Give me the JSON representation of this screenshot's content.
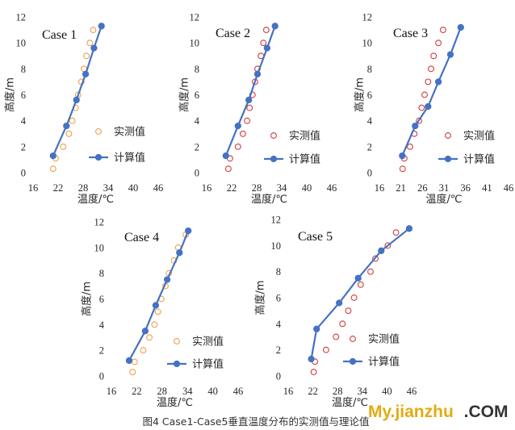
{
  "figure": {
    "caption": "图4 Case1-Case5垂直温度分布的实测值与理论值",
    "watermark": {
      "main": "My.jianzhu",
      "suffix": ".COM",
      "main_color": "#e3ab12",
      "suffix_color": "#333333"
    }
  },
  "chart_data": [
    {
      "type": "scatter",
      "title": "Case 1",
      "xlabel": "温度/℃",
      "ylabel": "高度/m",
      "xlim": [
        16,
        46
      ],
      "ylim": [
        0,
        12
      ],
      "xticks": [
        16,
        22,
        28,
        34,
        40,
        46
      ],
      "yticks": [
        0,
        2,
        4,
        6,
        8,
        10,
        12
      ],
      "grid": false,
      "legend": "bottom-right",
      "series": [
        {
          "name": "实测值",
          "color": "#f0a04b",
          "line": false,
          "filled": false,
          "x": [
            20.8,
            21.4,
            23.2,
            24.6,
            25.4,
            26.2,
            26.8,
            27.6,
            28.2,
            28.8,
            29.6,
            30.4
          ],
          "y": [
            0.3,
            1.1,
            2.0,
            3.0,
            4.0,
            5.0,
            6.0,
            7.0,
            8.0,
            9.0,
            10.0,
            11.0
          ]
        },
        {
          "name": "计算值",
          "color": "#4472c4",
          "line": true,
          "filled": true,
          "x": [
            20.8,
            24.0,
            26.4,
            28.6,
            30.6,
            32.4
          ],
          "y": [
            1.3,
            3.6,
            5.6,
            7.6,
            9.6,
            11.3
          ]
        }
      ]
    },
    {
      "type": "scatter",
      "title": "Case 2",
      "xlabel": "温度/℃",
      "ylabel": "高度/m",
      "xlim": [
        16,
        46
      ],
      "ylim": [
        0,
        12
      ],
      "xticks": [
        16,
        22,
        28,
        34,
        40,
        46
      ],
      "yticks": [
        0,
        2,
        4,
        6,
        8,
        10,
        12
      ],
      "grid": false,
      "legend": "bottom-right",
      "series": [
        {
          "name": "实测值",
          "color": "#d23c3c",
          "line": false,
          "filled": false,
          "x": [
            21.2,
            21.6,
            23.5,
            24.7,
            25.7,
            26.3,
            27.0,
            27.6,
            28.2,
            29.0,
            29.6,
            30.3
          ],
          "y": [
            0.3,
            1.1,
            2.0,
            3.0,
            4.0,
            5.0,
            6.0,
            7.0,
            8.0,
            9.0,
            10.0,
            11.0
          ]
        },
        {
          "name": "计算值",
          "color": "#4472c4",
          "line": true,
          "filled": true,
          "x": [
            20.6,
            23.5,
            26.1,
            28.2,
            30.5,
            32.4
          ],
          "y": [
            1.3,
            3.6,
            5.6,
            7.6,
            9.6,
            11.3
          ]
        }
      ]
    },
    {
      "type": "scatter",
      "title": "Case 3",
      "xlabel": "温度/℃",
      "ylabel": "高度/m",
      "xlim": [
        16,
        46
      ],
      "ylim": [
        0,
        12
      ],
      "xticks": [
        16,
        21,
        26,
        31,
        36,
        41,
        46
      ],
      "yticks": [
        0,
        2,
        4,
        6,
        8,
        10,
        12
      ],
      "grid": false,
      "legend": "bottom-right",
      "series": [
        {
          "name": "实测值",
          "color": "#d23c3c",
          "line": false,
          "filled": false,
          "x": [
            21.4,
            21.8,
            23.1,
            24.1,
            25.2,
            25.8,
            26.5,
            27.3,
            28.0,
            28.6,
            29.7,
            30.8
          ],
          "y": [
            0.3,
            1.1,
            2.0,
            3.0,
            4.0,
            5.0,
            6.0,
            7.0,
            8.0,
            9.0,
            10.0,
            11.0
          ]
        },
        {
          "name": "计算值",
          "color": "#4472c4",
          "line": true,
          "filled": true,
          "x": [
            21.3,
            24.3,
            27.3,
            29.7,
            32.5,
            34.9
          ],
          "y": [
            1.3,
            3.6,
            5.1,
            7.0,
            9.1,
            11.2
          ]
        }
      ]
    },
    {
      "type": "scatter",
      "title": "Case 4",
      "xlabel": "温度/℃",
      "ylabel": "高度/m",
      "xlim": [
        16,
        46
      ],
      "ylim": [
        0,
        12
      ],
      "xticks": [
        16,
        22,
        28,
        34,
        40,
        46
      ],
      "yticks": [
        0,
        2,
        4,
        6,
        8,
        10,
        12
      ],
      "grid": false,
      "legend": "bottom-right",
      "series": [
        {
          "name": "实测值",
          "color": "#f0a04b",
          "line": false,
          "filled": false,
          "x": [
            21.0,
            21.5,
            23.5,
            25.0,
            26.2,
            27.0,
            27.8,
            28.8,
            29.6,
            30.8,
            31.8,
            33.6
          ],
          "y": [
            0.3,
            1.1,
            2.0,
            3.0,
            4.0,
            5.0,
            6.0,
            7.0,
            8.0,
            9.0,
            10.0,
            11.0
          ]
        },
        {
          "name": "计算值",
          "color": "#4472c4",
          "line": true,
          "filled": true,
          "x": [
            20.2,
            24.0,
            26.5,
            29.2,
            32.1,
            34.2
          ],
          "y": [
            1.2,
            3.5,
            5.5,
            7.5,
            9.6,
            11.3
          ]
        }
      ]
    },
    {
      "type": "scatter",
      "title": "Case 5",
      "xlabel": "温度/℃",
      "ylabel": "高度/m",
      "xlim": [
        16,
        46
      ],
      "ylim": [
        0,
        12
      ],
      "xticks": [
        16,
        22,
        28,
        34,
        40,
        46
      ],
      "yticks": [
        0,
        2,
        4,
        6,
        8,
        10,
        12
      ],
      "grid": false,
      "legend": "bottom-right",
      "series": [
        {
          "name": "实测值",
          "color": "#d23c3c",
          "line": false,
          "filled": false,
          "x": [
            22.2,
            22.5,
            25.2,
            27.6,
            29.2,
            30.6,
            32.0,
            33.6,
            36.0,
            37.2,
            40.2,
            42.2
          ],
          "y": [
            0.3,
            1.1,
            2.0,
            3.0,
            4.0,
            5.0,
            6.0,
            7.0,
            8.0,
            9.0,
            10.0,
            11.0
          ]
        },
        {
          "name": "计算值",
          "color": "#4472c4",
          "line": true,
          "filled": true,
          "x": [
            21.6,
            22.9,
            28.4,
            33.0,
            38.6,
            45.4
          ],
          "y": [
            1.3,
            3.6,
            5.6,
            7.5,
            9.6,
            11.3
          ]
        }
      ]
    }
  ]
}
